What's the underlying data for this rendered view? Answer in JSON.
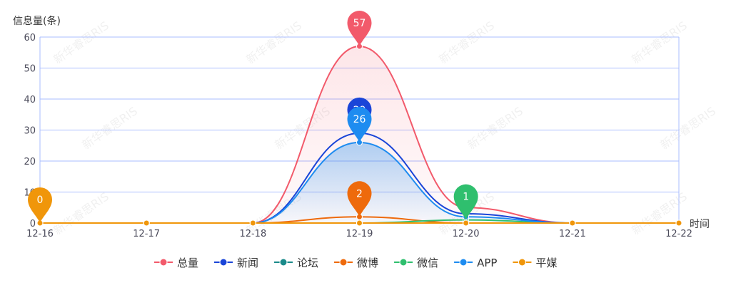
{
  "chart_data": {
    "type": "line",
    "title": "",
    "ylabel": "信息量(条)",
    "xlabel": "时间",
    "ylim": [
      0,
      60
    ],
    "yticks": [
      0,
      10,
      20,
      30,
      40,
      50,
      60
    ],
    "categories": [
      "12-16",
      "12-17",
      "12-18",
      "12-19",
      "12-20",
      "12-21",
      "12-22"
    ],
    "grid": true,
    "legend_position": "bottom",
    "smooth": true,
    "series": [
      {
        "name": "总量",
        "color": "#f25a6b",
        "values": [
          0,
          0,
          0,
          57,
          5,
          0,
          0
        ],
        "area": true,
        "max_label": "57"
      },
      {
        "name": "新闻",
        "color": "#1a45d8",
        "values": [
          0,
          0,
          0,
          29,
          3,
          0,
          0
        ],
        "area": false,
        "max_label": "29"
      },
      {
        "name": "论坛",
        "color": "#1a8a8a",
        "values": [
          0,
          0,
          0,
          0,
          0,
          0,
          0
        ],
        "area": false
      },
      {
        "name": "微博",
        "color": "#ee6a0c",
        "values": [
          0,
          0,
          0,
          2,
          0,
          0,
          0
        ],
        "area": false,
        "max_label": "2"
      },
      {
        "name": "微信",
        "color": "#2fbf6e",
        "values": [
          0,
          0,
          0,
          0,
          1,
          0,
          0
        ],
        "area": false,
        "max_label": "1"
      },
      {
        "name": "APP",
        "color": "#1e8cf0",
        "values": [
          0,
          0,
          0,
          26,
          2,
          0,
          0
        ],
        "area": true,
        "max_label": "26"
      },
      {
        "name": "平媒",
        "color": "#f0960a",
        "values": [
          0,
          0,
          0,
          0,
          0,
          0,
          0
        ],
        "area": false,
        "max_label": "0"
      }
    ],
    "watermark": "新华睿思RIS"
  }
}
